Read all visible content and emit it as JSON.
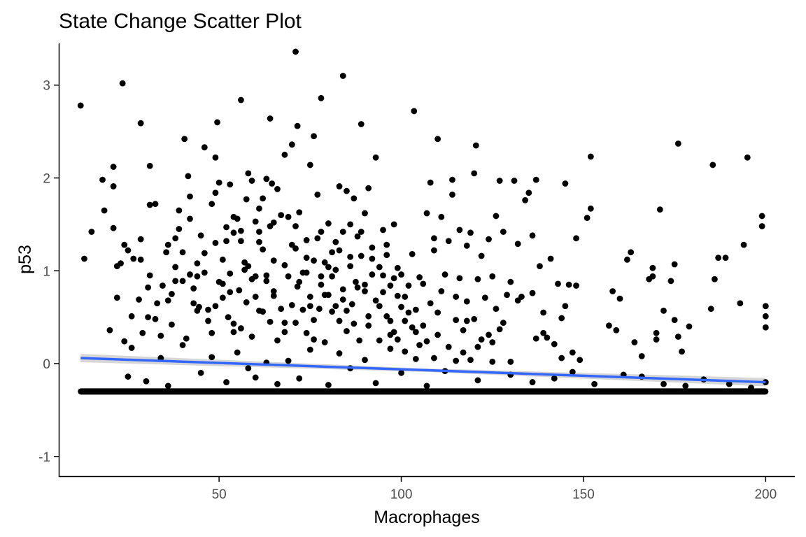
{
  "chart_data": {
    "type": "scatter",
    "title": "State Change Scatter Plot",
    "xlabel": "Macrophages",
    "ylabel": "p53",
    "xlim": [
      6,
      208
    ],
    "ylim": [
      -1.22,
      3.45
    ],
    "x_ticks": [
      50,
      100,
      150,
      200
    ],
    "x_tick_labels": [
      "50",
      "100",
      "150",
      "200"
    ],
    "y_ticks": [
      -1,
      0,
      1,
      2,
      3
    ],
    "y_tick_labels": [
      "-1",
      "0",
      "1",
      "2",
      "3"
    ],
    "grid": false,
    "legend": "none",
    "point_color": "#000000",
    "trend_color": "#3366FF",
    "ribbon_color": "#C8C8C8",
    "floor_value": -0.3,
    "floor_x_range": [
      12,
      200
    ],
    "trend_line": {
      "x": [
        12,
        200
      ],
      "y": [
        0.06,
        -0.2
      ]
    },
    "points": [
      [
        12,
        2.78
      ],
      [
        23.5,
        3.02
      ],
      [
        28.5,
        2.59
      ],
      [
        40.5,
        2.42
      ],
      [
        49.5,
        2.6
      ],
      [
        56,
        2.84
      ],
      [
        64,
        2.64
      ],
      [
        71,
        3.36
      ],
      [
        71.5,
        2.56
      ],
      [
        78,
        2.86
      ],
      [
        84,
        3.1
      ],
      [
        76,
        2.45
      ],
      [
        89,
        2.58
      ],
      [
        103.5,
        2.72
      ],
      [
        110,
        2.42
      ],
      [
        120.5,
        2.35
      ],
      [
        152,
        2.23
      ],
      [
        176,
        2.37
      ],
      [
        185.5,
        2.14
      ],
      [
        195,
        2.22
      ],
      [
        13,
        1.13
      ],
      [
        15,
        1.42
      ],
      [
        18,
        1.98
      ],
      [
        18.5,
        1.65
      ],
      [
        21,
        2.12
      ],
      [
        21,
        1.91
      ],
      [
        21,
        1.46
      ],
      [
        22,
        1.05
      ],
      [
        22,
        0.71
      ],
      [
        23,
        1.08
      ],
      [
        24,
        1.28
      ],
      [
        25,
        1.22
      ],
      [
        26.5,
        1.13
      ],
      [
        28.5,
        1.34
      ],
      [
        28.5,
        1.12
      ],
      [
        30.5,
        0.82
      ],
      [
        30.5,
        0.5
      ],
      [
        31,
        1.71
      ],
      [
        31,
        2.13
      ],
      [
        32.5,
        1.72
      ],
      [
        32.5,
        0.48
      ],
      [
        34.5,
        0.84
      ],
      [
        35.5,
        1.2
      ],
      [
        36,
        1.28
      ],
      [
        36,
        0.68
      ],
      [
        37,
        0.42
      ],
      [
        38,
        1.35
      ],
      [
        38,
        1.04
      ],
      [
        39,
        1.65
      ],
      [
        40,
        0.89
      ],
      [
        40,
        1.2
      ],
      [
        41.5,
        2.02
      ],
      [
        42,
        1.8
      ],
      [
        42,
        0.96
      ],
      [
        43,
        0.81
      ],
      [
        44,
        0.57
      ],
      [
        44.5,
        0.61
      ],
      [
        45,
        1.38
      ],
      [
        46,
        1.19
      ],
      [
        46,
        2.33
      ],
      [
        47,
        0.46
      ],
      [
        48,
        0.33
      ],
      [
        49,
        2.22
      ],
      [
        49,
        1.84
      ],
      [
        49,
        1.3
      ],
      [
        50,
        1.95
      ],
      [
        51,
        0.86
      ],
      [
        51,
        0.71
      ],
      [
        52,
        1.47
      ],
      [
        52,
        1.32
      ],
      [
        52.5,
        0.5
      ],
      [
        53,
        0.97
      ],
      [
        53,
        1.93
      ],
      [
        54,
        1.58
      ],
      [
        54,
        0.43
      ],
      [
        55,
        1.56
      ],
      [
        55.5,
        0.79
      ],
      [
        56,
        1.43
      ],
      [
        56,
        1.32
      ],
      [
        57,
        1.09
      ],
      [
        57.5,
        1.77
      ],
      [
        57.5,
        0.66
      ],
      [
        58,
        2.05
      ],
      [
        59,
        1.97
      ],
      [
        59,
        0.29
      ],
      [
        60,
        1.53
      ],
      [
        60,
        0.94
      ],
      [
        61,
        1.67
      ],
      [
        61,
        1.31
      ],
      [
        61,
        0.57
      ],
      [
        62,
        1.23
      ],
      [
        62,
        1.78
      ],
      [
        63,
        1.99
      ],
      [
        63,
        0.89
      ],
      [
        64,
        1.48
      ],
      [
        64,
        0.45
      ],
      [
        64.5,
        1.94
      ],
      [
        65,
        1.11
      ],
      [
        65,
        0.73
      ],
      [
        66,
        1.88
      ],
      [
        67,
        0.59
      ],
      [
        67,
        1.6
      ],
      [
        68,
        2.25
      ],
      [
        68,
        0.34
      ],
      [
        69,
        1.58
      ],
      [
        69,
        0.94
      ],
      [
        70,
        2.36
      ],
      [
        70,
        1.28
      ],
      [
        71,
        0.44
      ],
      [
        71,
        1.24
      ],
      [
        71.5,
        0.83
      ],
      [
        72,
        1.63
      ],
      [
        73,
        0.58
      ],
      [
        74,
        1.33
      ],
      [
        74,
        0.33
      ],
      [
        74,
        0.98
      ],
      [
        75,
        2.14
      ],
      [
        75,
        0.72
      ],
      [
        76,
        0.47
      ],
      [
        76,
        1.11
      ],
      [
        77,
        1.82
      ],
      [
        77.5,
        0.59
      ],
      [
        78,
        1.42
      ],
      [
        78,
        0.85
      ],
      [
        79,
        1.09
      ],
      [
        79,
        0.23
      ],
      [
        80,
        1.51
      ],
      [
        80,
        0.74
      ],
      [
        81,
        1.2
      ],
      [
        81,
        0.94
      ],
      [
        82,
        0.62
      ],
      [
        82,
        1.31
      ],
      [
        83,
        1.91
      ],
      [
        83,
        0.46
      ],
      [
        84,
        0.8
      ],
      [
        84,
        1.42
      ],
      [
        85,
        1.86
      ],
      [
        85,
        0.35
      ],
      [
        86,
        1.05
      ],
      [
        86,
        1.5
      ],
      [
        86.5,
        0.64
      ],
      [
        87,
        1.78
      ],
      [
        87.5,
        0.88
      ],
      [
        88,
        1.37
      ],
      [
        88.5,
        0.25
      ],
      [
        89,
        1.16
      ],
      [
        90,
        1.62
      ],
      [
        90,
        0.78
      ],
      [
        91,
        1.89
      ],
      [
        91,
        0.41
      ],
      [
        92,
        1.25
      ],
      [
        92,
        0.96
      ],
      [
        93,
        0.68
      ],
      [
        93,
        2.22
      ],
      [
        94,
        1.04
      ],
      [
        94,
        0.25
      ],
      [
        95,
        1.44
      ],
      [
        95,
        0.77
      ],
      [
        96,
        0.51
      ],
      [
        96,
        1.17
      ],
      [
        97,
        0.84
      ],
      [
        97,
        0.31
      ],
      [
        98,
        1.5
      ],
      [
        98,
        0.92
      ],
      [
        99,
        0.73
      ],
      [
        99,
        0.26
      ],
      [
        100,
        0.96
      ],
      [
        100,
        0.61
      ],
      [
        101,
        0.46
      ],
      [
        101,
        0.13
      ],
      [
        102,
        0.84
      ],
      [
        103,
        0.39
      ],
      [
        103,
        1.18
      ],
      [
        104,
        0.58
      ],
      [
        105,
        0.2
      ],
      [
        106,
        0.86
      ],
      [
        106,
        0.41
      ],
      [
        107,
        1.62
      ],
      [
        107,
        0.24
      ],
      [
        108,
        1.95
      ],
      [
        108,
        0.65
      ],
      [
        109,
        0.06
      ],
      [
        109,
        1.35
      ],
      [
        110,
        0.31
      ],
      [
        111,
        0.78
      ],
      [
        111,
        1.58
      ],
      [
        112,
        0.96
      ],
      [
        113,
        1.32
      ],
      [
        113,
        0.18
      ],
      [
        114,
        1.98
      ],
      [
        114,
        1.82
      ],
      [
        115,
        0.47
      ],
      [
        115,
        0.03
      ],
      [
        116,
        1.44
      ],
      [
        116,
        0.92
      ],
      [
        117,
        0.36
      ],
      [
        118,
        1.27
      ],
      [
        118,
        0.67
      ],
      [
        119,
        1.41
      ],
      [
        119,
        0.04
      ],
      [
        120,
        2.05
      ],
      [
        120,
        0.48
      ],
      [
        121,
        0.91
      ],
      [
        122,
        1.16
      ],
      [
        122,
        0.26
      ],
      [
        123,
        0.71
      ],
      [
        124,
        1.34
      ],
      [
        124,
        0.31
      ],
      [
        125,
        0.94
      ],
      [
        125,
        0.23
      ],
      [
        126,
        1.59
      ],
      [
        126,
        0.59
      ],
      [
        127,
        1.97
      ],
      [
        127,
        0.37
      ],
      [
        128,
        1.42
      ],
      [
        129,
        0.74
      ],
      [
        130,
        0.88
      ],
      [
        130,
        0.02
      ],
      [
        131,
        1.97
      ],
      [
        132,
        1.29
      ],
      [
        133,
        0.72
      ],
      [
        134,
        1.76
      ],
      [
        135,
        1.84
      ],
      [
        136,
        1.38
      ],
      [
        136,
        0.76
      ],
      [
        137,
        1.98
      ],
      [
        137,
        0.27
      ],
      [
        138,
        1.05
      ],
      [
        139,
        0.55
      ],
      [
        140,
        0.28
      ],
      [
        141,
        1.13
      ],
      [
        142,
        0.21
      ],
      [
        143,
        0.86
      ],
      [
        144,
        0.06
      ],
      [
        145,
        1.94
      ],
      [
        145,
        0.62
      ],
      [
        146,
        0.85
      ],
      [
        147,
        0.12
      ],
      [
        148,
        1.35
      ],
      [
        148,
        0.84
      ],
      [
        149,
        0.04
      ],
      [
        151,
        1.57
      ],
      [
        152,
        1.67
      ],
      [
        157,
        0.41
      ],
      [
        158,
        0.78
      ],
      [
        159,
        0.36
      ],
      [
        160,
        0.7
      ],
      [
        162,
        1.12
      ],
      [
        163,
        1.2
      ],
      [
        164,
        0.23
      ],
      [
        166,
        0.08
      ],
      [
        168,
        0.91
      ],
      [
        169,
        0.94
      ],
      [
        169,
        1.03
      ],
      [
        170,
        0.26
      ],
      [
        170,
        0.33
      ],
      [
        171,
        1.66
      ],
      [
        172,
        0.57
      ],
      [
        174,
        0.89
      ],
      [
        175,
        1.07
      ],
      [
        175,
        0.47
      ],
      [
        176,
        0.29
      ],
      [
        177,
        0.13
      ],
      [
        179,
        0.4
      ],
      [
        185,
        0.59
      ],
      [
        186,
        0.91
      ],
      [
        187,
        1.14
      ],
      [
        189,
        1.14
      ],
      [
        193,
        0.65
      ],
      [
        194,
        1.28
      ],
      [
        199,
        1.48
      ],
      [
        199,
        1.59
      ],
      [
        200,
        0.62
      ],
      [
        200,
        0.51
      ],
      [
        200,
        0.39
      ],
      [
        200,
        -0.2
      ],
      [
        20,
        0.36
      ],
      [
        24,
        0.24
      ],
      [
        25,
        -0.14
      ],
      [
        26,
        0.17
      ],
      [
        30,
        -0.19
      ],
      [
        34,
        0.06
      ],
      [
        36,
        -0.24
      ],
      [
        40,
        0.2
      ],
      [
        45,
        -0.1
      ],
      [
        48,
        0.07
      ],
      [
        52,
        -0.2
      ],
      [
        55,
        0.12
      ],
      [
        58,
        -0.05
      ],
      [
        60,
        -0.15
      ],
      [
        63,
        0.01
      ],
      [
        66,
        -0.22
      ],
      [
        69,
        0.03
      ],
      [
        72,
        -0.16
      ],
      [
        75,
        0.15
      ],
      [
        80,
        -0.23
      ],
      [
        83,
        0.11
      ],
      [
        86,
        -0.05
      ],
      [
        90,
        0.04
      ],
      [
        93,
        -0.21
      ],
      [
        97,
        0.16
      ],
      [
        100,
        -0.1
      ],
      [
        104,
        0.05
      ],
      [
        107,
        -0.24
      ],
      [
        112,
        -0.08
      ],
      [
        117,
        0.12
      ],
      [
        121,
        -0.18
      ],
      [
        125,
        0.02
      ],
      [
        130,
        -0.12
      ],
      [
        136,
        -0.2
      ],
      [
        142,
        -0.16
      ],
      [
        147,
        -0.09
      ],
      [
        153,
        -0.22
      ],
      [
        161,
        -0.12
      ],
      [
        166,
        -0.14
      ],
      [
        172,
        -0.22
      ],
      [
        178,
        -0.24
      ],
      [
        183,
        -0.17
      ],
      [
        190,
        -0.22
      ],
      [
        196,
        -0.26
      ],
      [
        28,
        0.69
      ],
      [
        31,
        0.95
      ],
      [
        34,
        0.3
      ],
      [
        37,
        0.75
      ],
      [
        43,
        0.65
      ],
      [
        46,
        0.98
      ],
      [
        49,
        0.62
      ],
      [
        53,
        0.77
      ],
      [
        56,
        0.38
      ],
      [
        59,
        0.91
      ],
      [
        62,
        0.56
      ],
      [
        65,
        0.78
      ],
      [
        68,
        0.44
      ],
      [
        72,
        0.88
      ],
      [
        75,
        0.62
      ],
      [
        78,
        0.94
      ],
      [
        81,
        0.56
      ],
      [
        84,
        0.69
      ],
      [
        87,
        0.43
      ],
      [
        90,
        0.85
      ],
      [
        94,
        0.62
      ],
      [
        97,
        0.46
      ],
      [
        101,
        0.72
      ],
      [
        104,
        0.34
      ],
      [
        110,
        0.55
      ],
      [
        115,
        0.72
      ],
      [
        118,
        0.46
      ],
      [
        121,
        0.18
      ],
      [
        128,
        0.44
      ],
      [
        132,
        0.68
      ],
      [
        139,
        0.33
      ],
      [
        144,
        0.49
      ],
      [
        26,
        0.51
      ],
      [
        29,
        0.33
      ],
      [
        33,
        0.65
      ],
      [
        38,
        0.89
      ],
      [
        41,
        0.27
      ],
      [
        44,
        0.94
      ],
      [
        47,
        0.58
      ],
      [
        50,
        0.88
      ],
      [
        54,
        0.34
      ],
      [
        57,
        1.01
      ],
      [
        60,
        0.72
      ],
      [
        63,
        0.95
      ],
      [
        66,
        0.25
      ],
      [
        70,
        0.63
      ],
      [
        73,
        0.98
      ],
      [
        76,
        0.26
      ],
      [
        79,
        0.74
      ],
      [
        82,
        1.01
      ],
      [
        85,
        0.57
      ],
      [
        88,
        0.82
      ],
      [
        91,
        0.51
      ],
      [
        95,
        0.95
      ],
      [
        98,
        0.34
      ],
      [
        102,
        0.55
      ],
      [
        39,
        1.45
      ],
      [
        42,
        1.56
      ],
      [
        44,
        1.08
      ],
      [
        48,
        1.72
      ],
      [
        51,
        1.12
      ],
      [
        54,
        1.41
      ],
      [
        58,
        1.05
      ],
      [
        61,
        1.42
      ],
      [
        65,
        1.52
      ],
      [
        68,
        1.06
      ],
      [
        71,
        1.48
      ],
      [
        74,
        1.14
      ],
      [
        77,
        1.35
      ],
      [
        80,
        1.04
      ],
      [
        83,
        1.22
      ],
      [
        86,
        1.15
      ],
      [
        89,
        1.42
      ],
      [
        92,
        1.13
      ],
      [
        96,
        1.28
      ],
      [
        99,
        1.03
      ],
      [
        105,
        0.93
      ],
      [
        109,
        1.22
      ]
    ]
  }
}
